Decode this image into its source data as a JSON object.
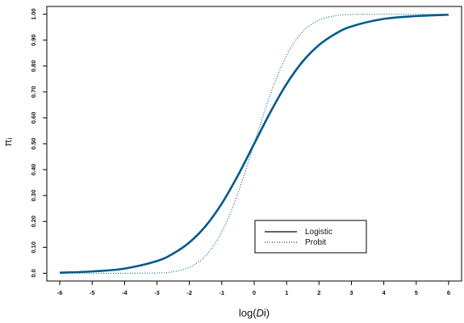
{
  "chart_data": {
    "type": "line",
    "xlabel_prefix": "log(",
    "xlabel_italic": "D",
    "xlabel_suffix": "i)",
    "ylabel": "πᵢ",
    "xlim": [
      -6.4,
      6.4
    ],
    "ylim": [
      -0.03,
      1.03
    ],
    "x_ticks": [
      -6,
      -5,
      -4,
      -3,
      -2,
      -1,
      0,
      1,
      2,
      3,
      4,
      5,
      6
    ],
    "x_tick_labels": [
      "-6",
      "-5",
      "-4",
      "-3",
      "-2",
      "-1",
      "0",
      "1",
      "2",
      "3",
      "4",
      "5",
      "6"
    ],
    "y_ticks": [
      0,
      0.1,
      0.2,
      0.3,
      0.4,
      0.5,
      0.6,
      0.7,
      0.8,
      0.9,
      1.0
    ],
    "y_tick_labels": [
      "0.0",
      "0.10",
      "0.20",
      "0.30",
      "0.40",
      "0.50",
      "0.60",
      "0.70",
      "0.80",
      "0.90",
      "1.00"
    ],
    "grid": false,
    "legend_position": "bottom-right",
    "colors": {
      "curve": "#005a8c",
      "axis": "#000000"
    },
    "x": [
      -6,
      -5,
      -4,
      -3,
      -2.5,
      -2,
      -1.5,
      -1,
      -0.5,
      0,
      0.5,
      1,
      1.5,
      2,
      2.5,
      3,
      4,
      5,
      6
    ],
    "series": [
      {
        "name": "Logistic",
        "style": "solid",
        "values": [
          0.002,
          0.007,
          0.018,
          0.047,
          0.076,
          0.119,
          0.182,
          0.269,
          0.378,
          0.5,
          0.622,
          0.731,
          0.818,
          0.881,
          0.924,
          0.953,
          0.982,
          0.993,
          0.998
        ]
      },
      {
        "name": "Probit",
        "style": "dotted",
        "values": [
          0.0,
          0.0,
          0.0,
          0.001,
          0.006,
          0.023,
          0.067,
          0.159,
          0.309,
          0.5,
          0.691,
          0.841,
          0.933,
          0.977,
          0.994,
          0.999,
          1.0,
          1.0,
          1.0
        ]
      }
    ]
  }
}
